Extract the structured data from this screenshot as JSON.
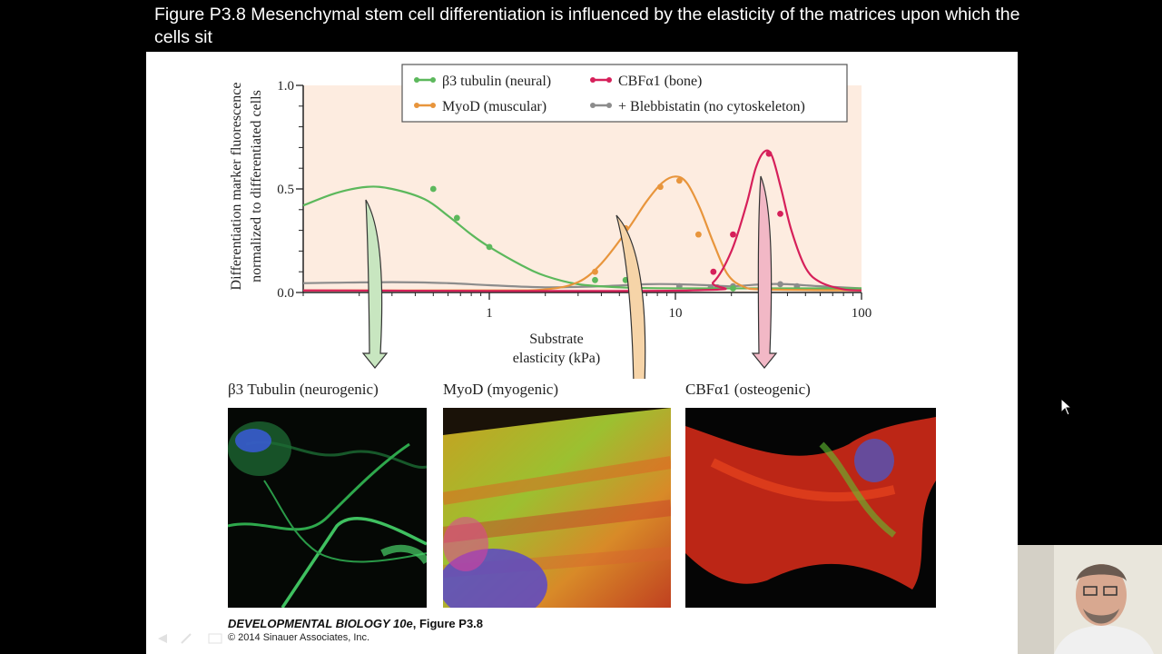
{
  "figure_title": "Figure P3.8  Mesenchymal stem cell differentiation is influenced by the elasticity of the matrices upon which the cells sit",
  "chart_data": {
    "type": "line",
    "x_scale": "log",
    "xlim": [
      0.1,
      100
    ],
    "ylim": [
      0.0,
      1.0
    ],
    "xlabel": "Substrate elasticity (kPa)",
    "xlabel_lines": [
      "Substrate",
      "elasticity (kPa)"
    ],
    "ylabel": "Differentiation marker fluorescence normalized to differentiated cells",
    "ylabel_lines": [
      "Differentiation marker fluorescence",
      "normalized to differentiated cells"
    ],
    "xticks": [
      {
        "value": 1,
        "label": "1"
      },
      {
        "value": 10,
        "label": "10"
      },
      {
        "value": 100,
        "label": "100"
      }
    ],
    "yticks": [
      {
        "value": 0.0,
        "label": "0.0"
      },
      {
        "value": 0.5,
        "label": "0.5"
      },
      {
        "value": 1.0,
        "label": "1.0"
      }
    ],
    "plot_background": "#fdece0",
    "legend_position": "top-right",
    "series": [
      {
        "name": "β3 tubulin (neural)",
        "color": "#5cb85c",
        "curve": [
          [
            0.1,
            0.42
          ],
          [
            0.15,
            0.48
          ],
          [
            0.22,
            0.51
          ],
          [
            0.3,
            0.5
          ],
          [
            0.45,
            0.45
          ],
          [
            0.6,
            0.37
          ],
          [
            0.8,
            0.28
          ],
          [
            1.0,
            0.22
          ],
          [
            1.5,
            0.13
          ],
          [
            2,
            0.08
          ],
          [
            3,
            0.04
          ],
          [
            5,
            0.025
          ],
          [
            10,
            0.02
          ],
          [
            30,
            0.02
          ],
          [
            100,
            0.02
          ]
        ],
        "points": [
          [
            0.5,
            0.5
          ],
          [
            0.67,
            0.36
          ],
          [
            1.0,
            0.22
          ],
          [
            3.7,
            0.06
          ],
          [
            5.4,
            0.06
          ],
          [
            20.4,
            0.02
          ]
        ]
      },
      {
        "name": "MyoD (muscular)",
        "color": "#e8953c",
        "curve": [
          [
            0.1,
            0.01
          ],
          [
            1,
            0.01
          ],
          [
            2,
            0.015
          ],
          [
            3,
            0.05
          ],
          [
            4,
            0.14
          ],
          [
            5.5,
            0.3
          ],
          [
            7,
            0.44
          ],
          [
            8.5,
            0.53
          ],
          [
            10,
            0.56
          ],
          [
            11.5,
            0.53
          ],
          [
            13.5,
            0.41
          ],
          [
            16,
            0.24
          ],
          [
            19,
            0.09
          ],
          [
            23,
            0.03
          ],
          [
            30,
            0.015
          ],
          [
            100,
            0.01
          ]
        ],
        "points": [
          [
            3.7,
            0.1
          ],
          [
            5.4,
            0.31
          ],
          [
            8.3,
            0.51
          ],
          [
            10.5,
            0.54
          ],
          [
            13.3,
            0.28
          ]
        ]
      },
      {
        "name": "CBFα1 (bone)",
        "color": "#d6205a",
        "curve": [
          [
            0.1,
            0.01
          ],
          [
            12,
            0.01
          ],
          [
            16,
            0.05
          ],
          [
            20,
            0.2
          ],
          [
            24,
            0.42
          ],
          [
            27,
            0.6
          ],
          [
            30,
            0.68
          ],
          [
            33,
            0.66
          ],
          [
            37,
            0.5
          ],
          [
            42,
            0.3
          ],
          [
            50,
            0.12
          ],
          [
            60,
            0.05
          ],
          [
            80,
            0.015
          ],
          [
            100,
            0.01
          ]
        ],
        "points": [
          [
            16,
            0.1
          ],
          [
            20.4,
            0.28
          ],
          [
            31.8,
            0.67
          ],
          [
            36.6,
            0.38
          ]
        ]
      },
      {
        "name": "+ Blebbistatin (no cytoskeleton)",
        "color": "#8c8c8c",
        "curve": [
          [
            0.1,
            0.045
          ],
          [
            0.3,
            0.05
          ],
          [
            0.6,
            0.045
          ],
          [
            1,
            0.035
          ],
          [
            2,
            0.025
          ],
          [
            4,
            0.03
          ],
          [
            7,
            0.04
          ],
          [
            10,
            0.04
          ],
          [
            15,
            0.035
          ],
          [
            20,
            0.03
          ],
          [
            30,
            0.04
          ],
          [
            40,
            0.04
          ],
          [
            60,
            0.03
          ],
          [
            100,
            0.02
          ]
        ],
        "points": [
          [
            10.5,
            0.03
          ],
          [
            15.5,
            0.025
          ],
          [
            16.8,
            0.025
          ],
          [
            20.4,
            0.03
          ],
          [
            31.8,
            0.04
          ],
          [
            36.6,
            0.04
          ],
          [
            45,
            0.03
          ]
        ]
      }
    ]
  },
  "arrows": [
    {
      "name": "green",
      "from_x": 0.5,
      "color": "#c8e6c0",
      "stroke": "#333"
    },
    {
      "name": "orange",
      "from_x": 5.8,
      "color": "#f6d4a8",
      "stroke": "#333"
    },
    {
      "name": "pink",
      "from_x": 31,
      "color": "#f2b8c6",
      "stroke": "#333"
    }
  ],
  "panels": [
    {
      "label": "β3 Tubulin (neurogenic)"
    },
    {
      "label": "MyoD (myogenic)"
    },
    {
      "label": "CBFα1 (osteogenic)"
    }
  ],
  "credit": {
    "book": "DEVELOPMENTAL BIOLOGY 10e",
    "figure": ", Figure P3.8",
    "copyright": "© 2014 Sinauer Associates, Inc."
  }
}
